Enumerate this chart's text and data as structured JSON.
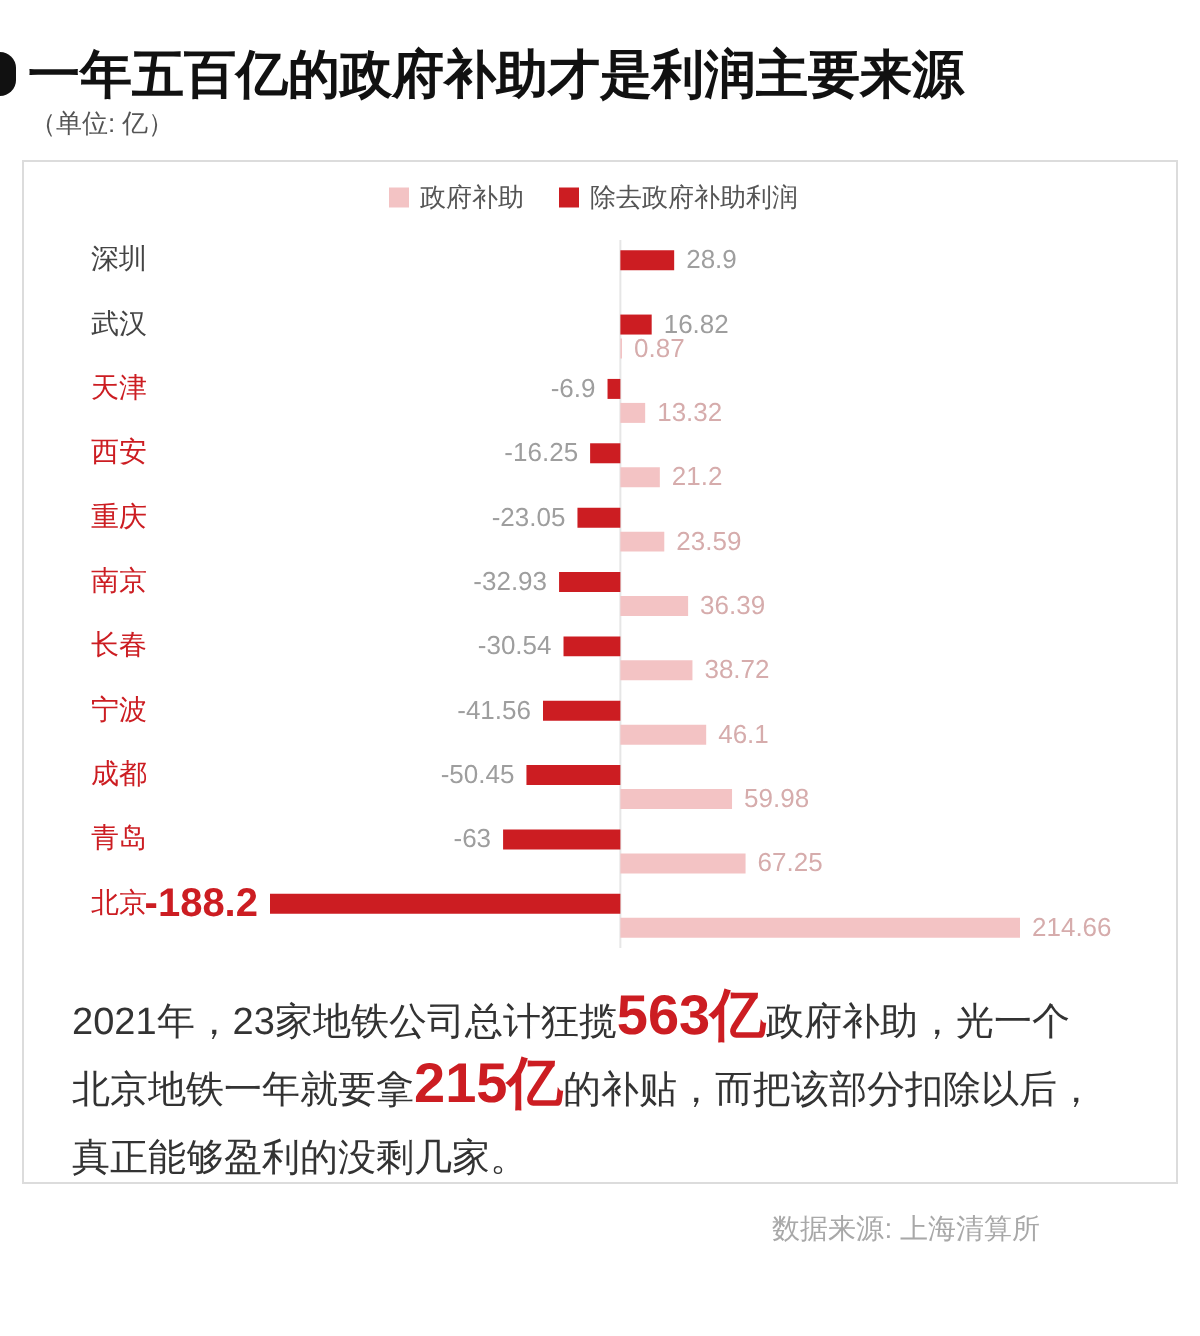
{
  "chart_data": {
    "type": "bar",
    "orientation": "horizontal",
    "title": "一年五百亿的政府补助才是利润主要来源",
    "subtitle": "（单位: 亿）",
    "categories": [
      "深圳",
      "武汉",
      "天津",
      "西安",
      "重庆",
      "南京",
      "长春",
      "宁波",
      "成都",
      "青岛",
      "北京"
    ],
    "series": [
      {
        "name": "政府补助",
        "color": "#f3c3c4",
        "values": [
          null,
          0.87,
          13.32,
          21.2,
          23.59,
          36.39,
          38.72,
          46.1,
          59.98,
          67.25,
          214.66
        ]
      },
      {
        "name": "除去政府补助利润",
        "color": "#cc1d22",
        "values": [
          28.9,
          16.82,
          -6.9,
          -16.25,
          -23.05,
          -32.93,
          -30.54,
          -41.56,
          -50.45,
          -63,
          -188.2
        ]
      }
    ],
    "data_labels": true,
    "legend": "top",
    "tick_labels": "y",
    "ref_lines": [
      {
        "axis": "x",
        "value": 0,
        "color": "#e6e6e6"
      }
    ],
    "annotations": [
      "2021年，23家地铁公司总计狂揽563亿政府补助，光一个北京地铁一年就要拿215亿的补贴，而把该部分扣除以后，真正能够盈利的没剩几家。",
      "数据来源: 上海清算所"
    ]
  }
}
